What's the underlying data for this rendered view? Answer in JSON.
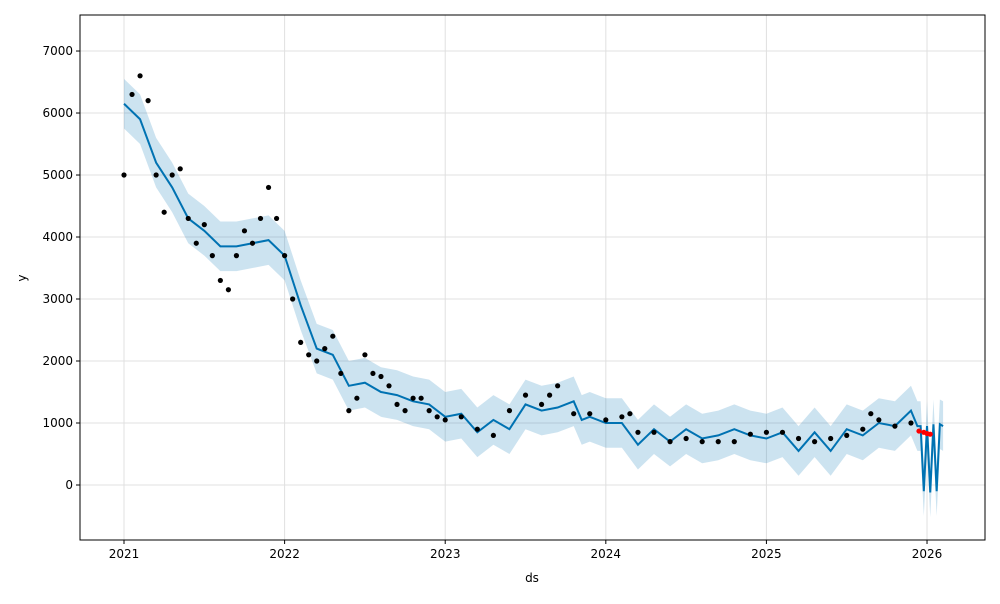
{
  "chart_data": {
    "type": "forecast",
    "xlabel": "ds",
    "ylabel": "y",
    "xlim": [
      2020.726,
      2026.361
    ],
    "xticks": [
      2021,
      2022,
      2023,
      2024,
      2025,
      2026
    ],
    "ylim": [
      -887,
      7581
    ],
    "yticks": [
      0,
      1000,
      2000,
      3000,
      4000,
      5000,
      6000,
      7000
    ],
    "grid": true,
    "band": {
      "color": "#0072b2",
      "x": [
        2021.0,
        2021.1,
        2021.2,
        2021.3,
        2021.4,
        2021.5,
        2021.6,
        2021.7,
        2021.8,
        2021.9,
        2022.0,
        2022.1,
        2022.2,
        2022.3,
        2022.4,
        2022.5,
        2022.6,
        2022.7,
        2022.8,
        2022.9,
        2023.0,
        2023.1,
        2023.2,
        2023.3,
        2023.4,
        2023.5,
        2023.6,
        2023.7,
        2023.8,
        2023.85,
        2023.9,
        2024.0,
        2024.1,
        2024.2,
        2024.3,
        2024.4,
        2024.5,
        2024.6,
        2024.7,
        2024.8,
        2024.9,
        2025.0,
        2025.1,
        2025.2,
        2025.3,
        2025.4,
        2025.5,
        2025.6,
        2025.7,
        2025.8,
        2025.9,
        2025.94,
        2025.96,
        2025.98,
        2026.0,
        2026.02,
        2026.04,
        2026.06,
        2026.08,
        2026.1
      ],
      "lower": [
        5750,
        5500,
        4800,
        4400,
        3900,
        3700,
        3450,
        3450,
        3500,
        3550,
        3300,
        2500,
        1800,
        1700,
        1200,
        1250,
        1100,
        1050,
        950,
        900,
        700,
        750,
        450,
        650,
        500,
        900,
        800,
        850,
        950,
        650,
        700,
        600,
        600,
        250,
        500,
        300,
        500,
        350,
        400,
        500,
        400,
        350,
        450,
        150,
        450,
        150,
        500,
        400,
        600,
        550,
        800,
        550,
        550,
        -500,
        550,
        -520,
        580,
        -500,
        580,
        550
      ],
      "upper": [
        6550,
        6300,
        5600,
        5200,
        4700,
        4500,
        4250,
        4250,
        4300,
        4350,
        4100,
        3300,
        2600,
        2500,
        2000,
        2050,
        1900,
        1850,
        1750,
        1700,
        1500,
        1550,
        1250,
        1450,
        1300,
        1700,
        1600,
        1650,
        1750,
        1450,
        1500,
        1400,
        1400,
        1050,
        1300,
        1100,
        1300,
        1150,
        1200,
        1300,
        1200,
        1150,
        1250,
        950,
        1250,
        950,
        1300,
        1200,
        1400,
        1350,
        1600,
        1350,
        1350,
        300,
        1350,
        280,
        1380,
        300,
        1380,
        1350
      ]
    },
    "series": [
      {
        "style": "line",
        "color": "#0072b2",
        "x": [
          2021.0,
          2021.1,
          2021.2,
          2021.3,
          2021.4,
          2021.5,
          2021.6,
          2021.7,
          2021.8,
          2021.9,
          2022.0,
          2022.1,
          2022.2,
          2022.3,
          2022.4,
          2022.5,
          2022.6,
          2022.7,
          2022.8,
          2022.9,
          2023.0,
          2023.1,
          2023.2,
          2023.3,
          2023.4,
          2023.5,
          2023.6,
          2023.7,
          2023.8,
          2023.85,
          2023.9,
          2024.0,
          2024.1,
          2024.2,
          2024.3,
          2024.4,
          2024.5,
          2024.6,
          2024.7,
          2024.8,
          2024.9,
          2025.0,
          2025.1,
          2025.2,
          2025.3,
          2025.4,
          2025.5,
          2025.6,
          2025.7,
          2025.8,
          2025.9,
          2025.94,
          2025.96,
          2025.98,
          2026.0,
          2026.02,
          2026.04,
          2026.06,
          2026.08,
          2026.1
        ],
        "values": [
          6150,
          5900,
          5200,
          4800,
          4300,
          4100,
          3850,
          3850,
          3900,
          3950,
          3700,
          2900,
          2200,
          2100,
          1600,
          1650,
          1500,
          1450,
          1350,
          1300,
          1100,
          1150,
          850,
          1050,
          900,
          1300,
          1200,
          1250,
          1350,
          1050,
          1100,
          1000,
          1000,
          650,
          900,
          700,
          900,
          750,
          800,
          900,
          800,
          750,
          850,
          550,
          850,
          550,
          900,
          800,
          1000,
          950,
          1200,
          950,
          950,
          -100,
          950,
          -120,
          980,
          -100,
          980,
          950
        ]
      },
      {
        "style": "scatter",
        "color": "#000000",
        "x": [
          2021.0,
          2021.05,
          2021.1,
          2021.15,
          2021.2,
          2021.25,
          2021.3,
          2021.35,
          2021.4,
          2021.45,
          2021.5,
          2021.55,
          2021.6,
          2021.65,
          2021.7,
          2021.75,
          2021.8,
          2021.85,
          2021.9,
          2021.95,
          2022.0,
          2022.05,
          2022.1,
          2022.15,
          2022.2,
          2022.25,
          2022.3,
          2022.35,
          2022.4,
          2022.45,
          2022.5,
          2022.55,
          2022.6,
          2022.65,
          2022.7,
          2022.75,
          2022.8,
          2022.85,
          2022.9,
          2022.95,
          2023.0,
          2023.1,
          2023.2,
          2023.3,
          2023.4,
          2023.5,
          2023.6,
          2023.65,
          2023.7,
          2023.8,
          2023.9,
          2024.0,
          2024.1,
          2024.15,
          2024.2,
          2024.3,
          2024.4,
          2024.5,
          2024.6,
          2024.7,
          2024.8,
          2024.9,
          2025.0,
          2025.1,
          2025.2,
          2025.3,
          2025.4,
          2025.5,
          2025.6,
          2025.65,
          2025.7,
          2025.8,
          2025.9
        ],
        "values": [
          5000,
          6300,
          6600,
          6200,
          5000,
          4400,
          5000,
          5100,
          4300,
          3900,
          4200,
          3700,
          3300,
          3150,
          3700,
          4100,
          3900,
          4300,
          4800,
          4300,
          3700,
          3000,
          2300,
          2100,
          2000,
          2200,
          2400,
          1800,
          1200,
          1400,
          2100,
          1800,
          1750,
          1600,
          1300,
          1200,
          1400,
          1400,
          1200,
          1100,
          1050,
          1100,
          900,
          800,
          1200,
          1450,
          1300,
          1450,
          1600,
          1150,
          1150,
          1050,
          1100,
          1150,
          850,
          850,
          700,
          750,
          700,
          700,
          700,
          820,
          850,
          850,
          750,
          700,
          750,
          800,
          900,
          1150,
          1050,
          950,
          1000
        ]
      },
      {
        "style": "scatter",
        "color": "#ff0000",
        "x": [
          2025.95,
          2025.98,
          2026.0,
          2026.02
        ],
        "values": [
          870,
          850,
          830,
          820
        ]
      }
    ]
  }
}
